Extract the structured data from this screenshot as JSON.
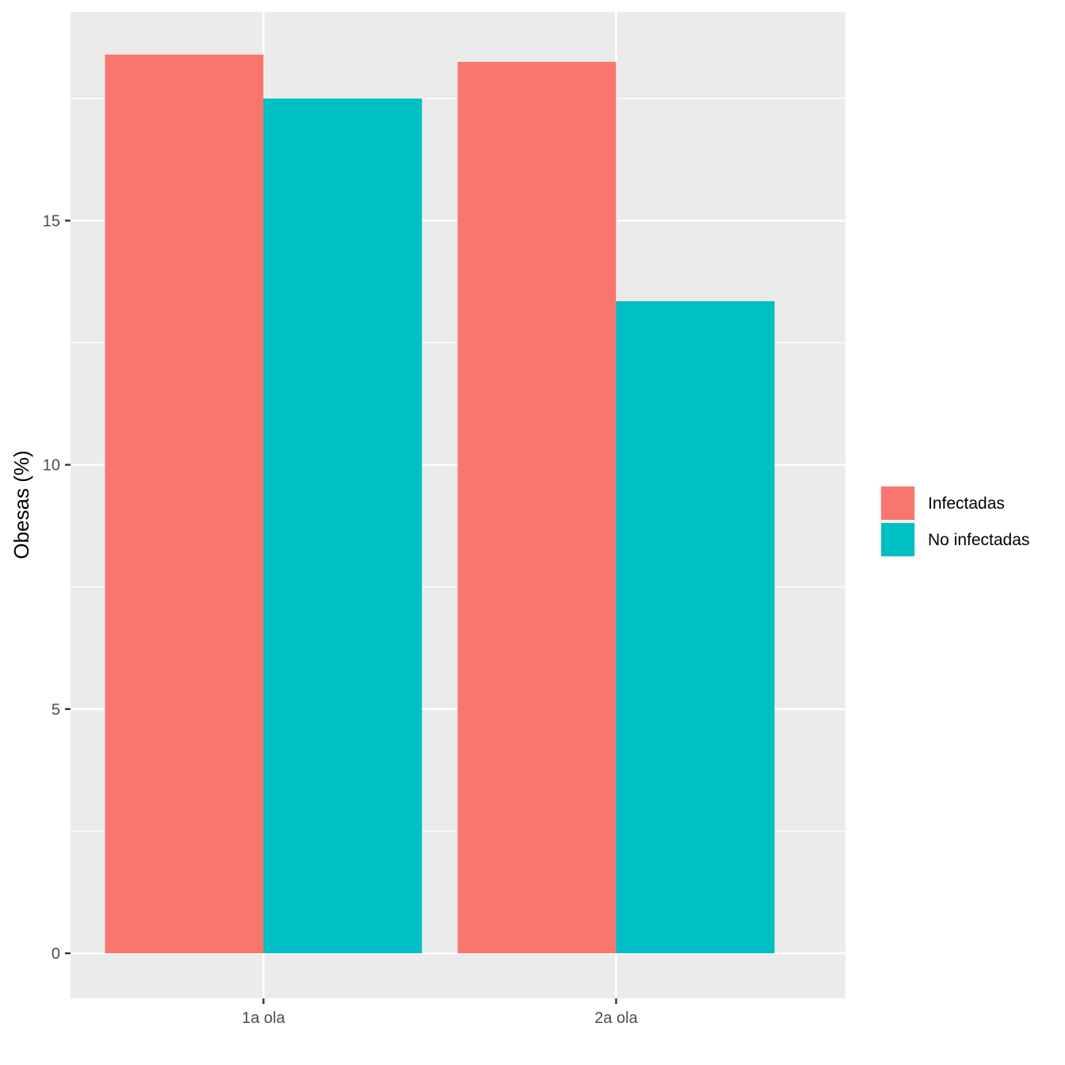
{
  "chart_data": {
    "type": "bar",
    "title": "",
    "xlabel": "",
    "ylabel": "Obesas (%)",
    "categories": [
      "1a ola",
      "2a ola"
    ],
    "series": [
      {
        "name": "Infectadas",
        "color": "#F8766D",
        "values": [
          18.4,
          18.25
        ]
      },
      {
        "name": "No infectadas",
        "color": "#00BFC4",
        "values": [
          17.5,
          13.35
        ]
      }
    ],
    "ylim": [
      -0.9,
      19.3
    ],
    "yticks": [
      0,
      5,
      10,
      15
    ],
    "grid": true,
    "legend_position": "right"
  }
}
